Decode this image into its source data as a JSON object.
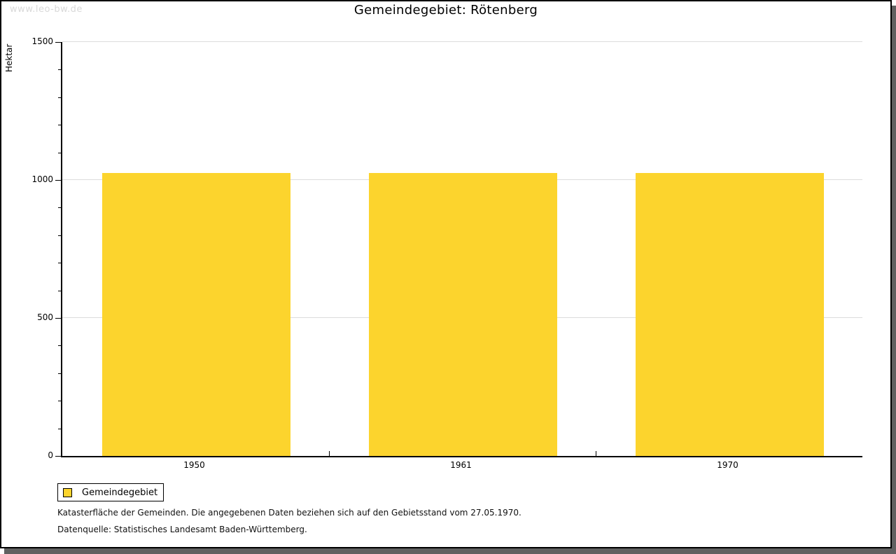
{
  "page": {
    "watermark": "www.leo-bw.de"
  },
  "chart_data": {
    "type": "bar",
    "title": "Gemeindegebiet: Rötenberg",
    "ylabel": "Hektar",
    "xlabel": "",
    "categories": [
      "1950",
      "1961",
      "1970"
    ],
    "series": [
      {
        "name": "Gemeindegebiet",
        "values": [
          1025,
          1025,
          1025
        ]
      }
    ],
    "ylim": [
      0,
      1500
    ],
    "yticks_major": [
      0,
      500,
      1000,
      1500
    ],
    "ytick_minor_step": 100,
    "grid": "horizontal-major",
    "legend_position": "bottom-left",
    "bar_color": "#fcd42d",
    "gridline_color": "#dcdcdc"
  },
  "legend": {
    "items": [
      {
        "label": "Gemeindegebiet",
        "color": "#fcd42d"
      }
    ]
  },
  "footer": {
    "line1": "Katasterfläche der Gemeinden. Die angegebenen Daten beziehen sich auf den Gebietsstand vom 27.05.1970.",
    "line2": "Datenquelle: Statistisches Landesamt Baden-Württemberg."
  }
}
